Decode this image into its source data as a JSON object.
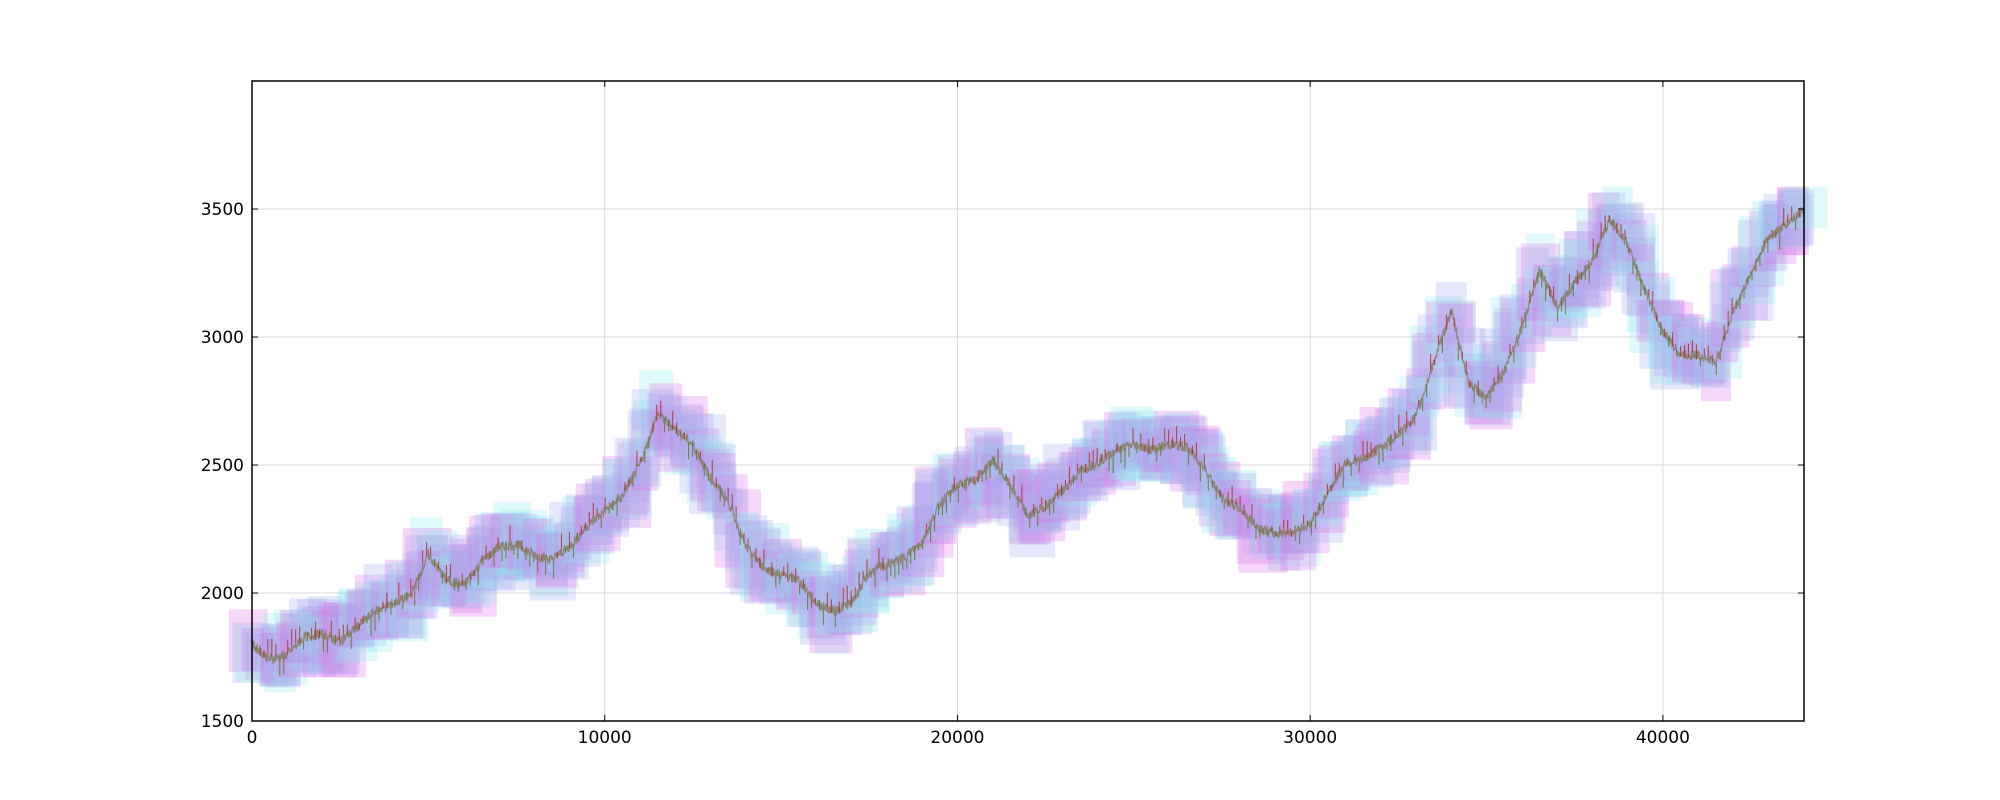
{
  "chart_data": {
    "type": "line",
    "title": "",
    "xlabel": "",
    "ylabel": "",
    "xlim": [
      0,
      44000
    ],
    "ylim": [
      1500,
      4000
    ],
    "grid": true,
    "legend": "none",
    "x_ticks": [
      {
        "value": 0,
        "label": "0"
      },
      {
        "value": 10000,
        "label": "10000"
      },
      {
        "value": 20000,
        "label": "20000"
      },
      {
        "value": 30000,
        "label": "30000"
      },
      {
        "value": 40000,
        "label": "40000"
      }
    ],
    "y_ticks": [
      {
        "value": 1500,
        "label": "1500"
      },
      {
        "value": 2000,
        "label": "2000"
      },
      {
        "value": 2500,
        "label": "2500"
      },
      {
        "value": 3000,
        "label": "3000"
      },
      {
        "value": 3500,
        "label": "3500"
      }
    ],
    "colors": {
      "price_line": "#8a7f6e",
      "price_up": "#b03020",
      "price_down": "#5a7a20",
      "band_pink": "#e06ee8",
      "band_cyan": "#8ee8ee",
      "band_blue": "#a0a8ee"
    },
    "series": [
      {
        "values": [
          [
            0,
            1800
          ],
          [
            500,
            1740
          ],
          [
            1000,
            1760
          ],
          [
            1500,
            1830
          ],
          [
            2000,
            1840
          ],
          [
            2500,
            1810
          ],
          [
            3000,
            1870
          ],
          [
            3500,
            1930
          ],
          [
            4000,
            1960
          ],
          [
            4500,
            1990
          ],
          [
            5000,
            2150
          ],
          [
            5500,
            2050
          ],
          [
            6000,
            2030
          ],
          [
            6500,
            2120
          ],
          [
            7000,
            2180
          ],
          [
            7500,
            2190
          ],
          [
            8000,
            2150
          ],
          [
            8500,
            2130
          ],
          [
            9000,
            2180
          ],
          [
            9500,
            2260
          ],
          [
            10000,
            2320
          ],
          [
            10500,
            2380
          ],
          [
            11000,
            2500
          ],
          [
            11500,
            2700
          ],
          [
            12000,
            2640
          ],
          [
            12500,
            2580
          ],
          [
            13000,
            2450
          ],
          [
            13500,
            2360
          ],
          [
            14000,
            2180
          ],
          [
            14500,
            2100
          ],
          [
            15000,
            2070
          ],
          [
            15500,
            2050
          ],
          [
            16000,
            1960
          ],
          [
            16500,
            1930
          ],
          [
            17000,
            1960
          ],
          [
            17500,
            2080
          ],
          [
            18000,
            2110
          ],
          [
            18500,
            2140
          ],
          [
            19000,
            2200
          ],
          [
            19500,
            2350
          ],
          [
            20000,
            2420
          ],
          [
            20500,
            2440
          ],
          [
            21000,
            2520
          ],
          [
            21500,
            2420
          ],
          [
            22000,
            2300
          ],
          [
            22500,
            2340
          ],
          [
            23000,
            2400
          ],
          [
            23500,
            2480
          ],
          [
            24000,
            2510
          ],
          [
            24500,
            2560
          ],
          [
            25000,
            2580
          ],
          [
            25500,
            2560
          ],
          [
            26000,
            2580
          ],
          [
            26500,
            2570
          ],
          [
            27000,
            2490
          ],
          [
            27500,
            2370
          ],
          [
            28000,
            2330
          ],
          [
            28500,
            2260
          ],
          [
            29000,
            2230
          ],
          [
            29500,
            2240
          ],
          [
            30000,
            2270
          ],
          [
            30500,
            2390
          ],
          [
            31000,
            2510
          ],
          [
            31500,
            2520
          ],
          [
            32000,
            2570
          ],
          [
            32500,
            2620
          ],
          [
            33000,
            2690
          ],
          [
            33500,
            2900
          ],
          [
            34000,
            3100
          ],
          [
            34500,
            2820
          ],
          [
            35000,
            2760
          ],
          [
            35500,
            2870
          ],
          [
            36000,
            3040
          ],
          [
            36500,
            3260
          ],
          [
            37000,
            3120
          ],
          [
            37500,
            3210
          ],
          [
            38000,
            3300
          ],
          [
            38500,
            3460
          ],
          [
            39000,
            3360
          ],
          [
            39500,
            3180
          ],
          [
            40000,
            3020
          ],
          [
            40500,
            2930
          ],
          [
            41000,
            2930
          ],
          [
            41500,
            2900
          ],
          [
            42000,
            3100
          ],
          [
            42500,
            3250
          ],
          [
            43000,
            3390
          ],
          [
            43500,
            3440
          ],
          [
            44000,
            3500
          ]
        ]
      }
    ]
  }
}
